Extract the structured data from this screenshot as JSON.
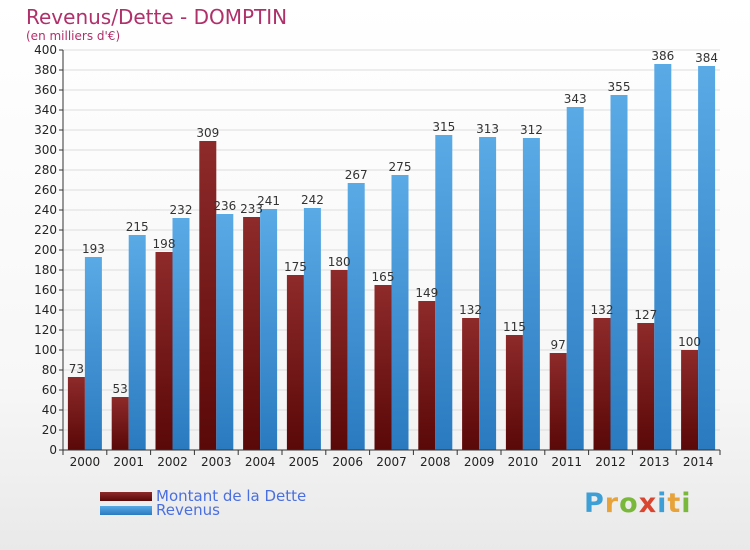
{
  "header": {
    "title": "Revenus/Dette - DOMPTIN",
    "subtitle": "(en milliers d'€)"
  },
  "logo": {
    "text": "Proxiti",
    "letters": [
      {
        "ch": "P",
        "color": "#3d9fd6"
      },
      {
        "ch": "r",
        "color": "#e8a23a"
      },
      {
        "ch": "o",
        "color": "#7ab83b"
      },
      {
        "ch": "x",
        "color": "#d9452e"
      },
      {
        "ch": "i",
        "color": "#3d9fd6"
      },
      {
        "ch": "t",
        "color": "#e8a23a"
      },
      {
        "ch": "i",
        "color": "#7ab83b"
      }
    ]
  },
  "colors": {
    "debt_top": "#8e2a2a",
    "debt_bottom": "#5a0808",
    "revenue_top": "#5aaae6",
    "revenue_bottom": "#2a7ac0",
    "grid": "#dddddd",
    "axis": "#333333"
  },
  "chart_data": {
    "type": "bar",
    "categories": [
      "2000",
      "2001",
      "2002",
      "2003",
      "2004",
      "2005",
      "2006",
      "2007",
      "2008",
      "2009",
      "2010",
      "2011",
      "2012",
      "2013",
      "2014"
    ],
    "series": [
      {
        "name": "Montant de la Dette",
        "values": [
          73,
          53,
          198,
          309,
          233,
          175,
          180,
          165,
          149,
          132,
          115,
          97,
          132,
          127,
          100
        ]
      },
      {
        "name": "Revenus",
        "values": [
          193,
          215,
          232,
          236,
          241,
          242,
          267,
          275,
          315,
          313,
          312,
          343,
          355,
          386,
          384
        ]
      }
    ],
    "ylim": [
      0,
      400
    ],
    "ytick_step": 20,
    "grid": true,
    "legend_position": "bottom-left"
  }
}
